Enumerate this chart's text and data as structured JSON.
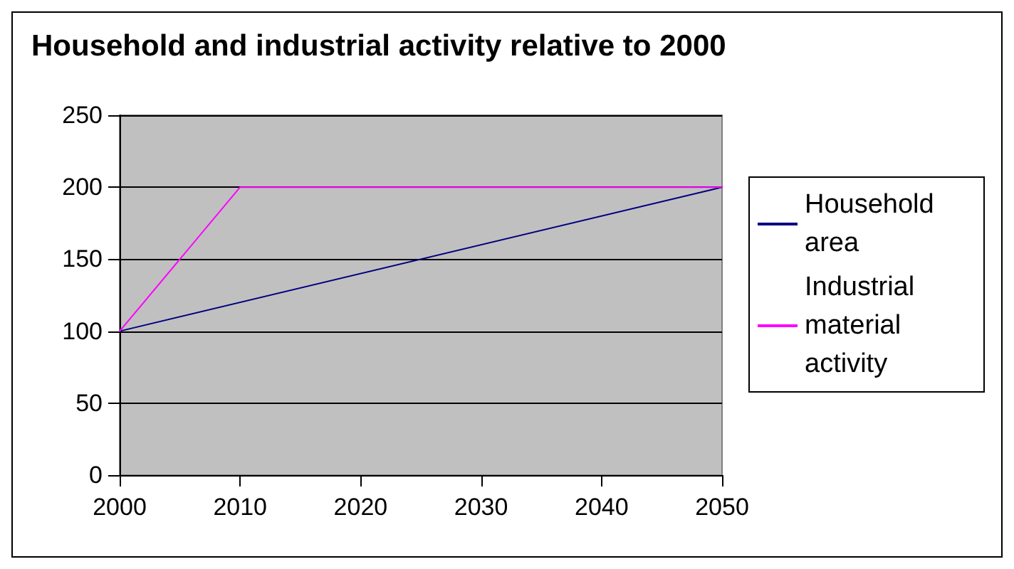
{
  "chart_data": {
    "type": "line",
    "title": "Household and industrial activity relative to 2000",
    "series": [
      {
        "name": "Household area",
        "color": "#000080",
        "x": [
          2000,
          2050
        ],
        "values": [
          100,
          200
        ]
      },
      {
        "name": "Industrial material activity",
        "color": "#ff00ff",
        "x": [
          2000,
          2010,
          2050
        ],
        "values": [
          100,
          200,
          200
        ]
      }
    ],
    "xlim": [
      2000,
      2050
    ],
    "xticks": [
      2000,
      2010,
      2020,
      2030,
      2040,
      2050
    ],
    "ylim": [
      0,
      250
    ],
    "yticks": [
      0,
      50,
      100,
      150,
      200,
      250
    ],
    "grid": "y",
    "legend": "right",
    "marker": "none",
    "line_style": "solid"
  }
}
